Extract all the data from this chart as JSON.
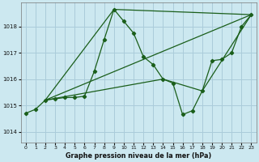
{
  "title": "Graphe pression niveau de la mer (hPa)",
  "background_color": "#cce8f0",
  "grid_color": "#aaccda",
  "line_color": "#1a5e1a",
  "xlim": [
    -0.5,
    23.5
  ],
  "ylim": [
    1013.6,
    1018.9
  ],
  "yticks": [
    1014,
    1015,
    1016,
    1017,
    1018
  ],
  "xticks": [
    0,
    1,
    2,
    3,
    4,
    5,
    6,
    7,
    8,
    9,
    10,
    11,
    12,
    13,
    14,
    15,
    16,
    17,
    18,
    19,
    20,
    21,
    22,
    23
  ],
  "series_main": {
    "x": [
      0,
      1,
      2,
      3,
      4,
      5,
      6,
      7,
      8,
      9,
      10,
      11,
      12,
      13,
      14,
      15,
      16,
      17,
      18,
      19,
      20,
      21,
      22,
      23
    ],
    "y": [
      1014.7,
      1014.85,
      1015.2,
      1015.25,
      1015.3,
      1015.3,
      1015.35,
      1016.3,
      1017.5,
      1018.65,
      1018.2,
      1017.75,
      1016.85,
      1016.55,
      1016.0,
      1015.85,
      1014.65,
      1014.8,
      1015.55,
      1016.7,
      1016.75,
      1017.0,
      1018.0,
      1018.45
    ]
  },
  "series_line2": {
    "x": [
      2,
      23
    ],
    "y": [
      1015.2,
      1018.45
    ]
  },
  "series_line3": {
    "x": [
      2,
      9,
      23
    ],
    "y": [
      1015.2,
      1018.65,
      1018.45
    ]
  },
  "series_line4": {
    "x": [
      2,
      14,
      18,
      23
    ],
    "y": [
      1015.2,
      1016.0,
      1015.55,
      1018.45
    ]
  }
}
